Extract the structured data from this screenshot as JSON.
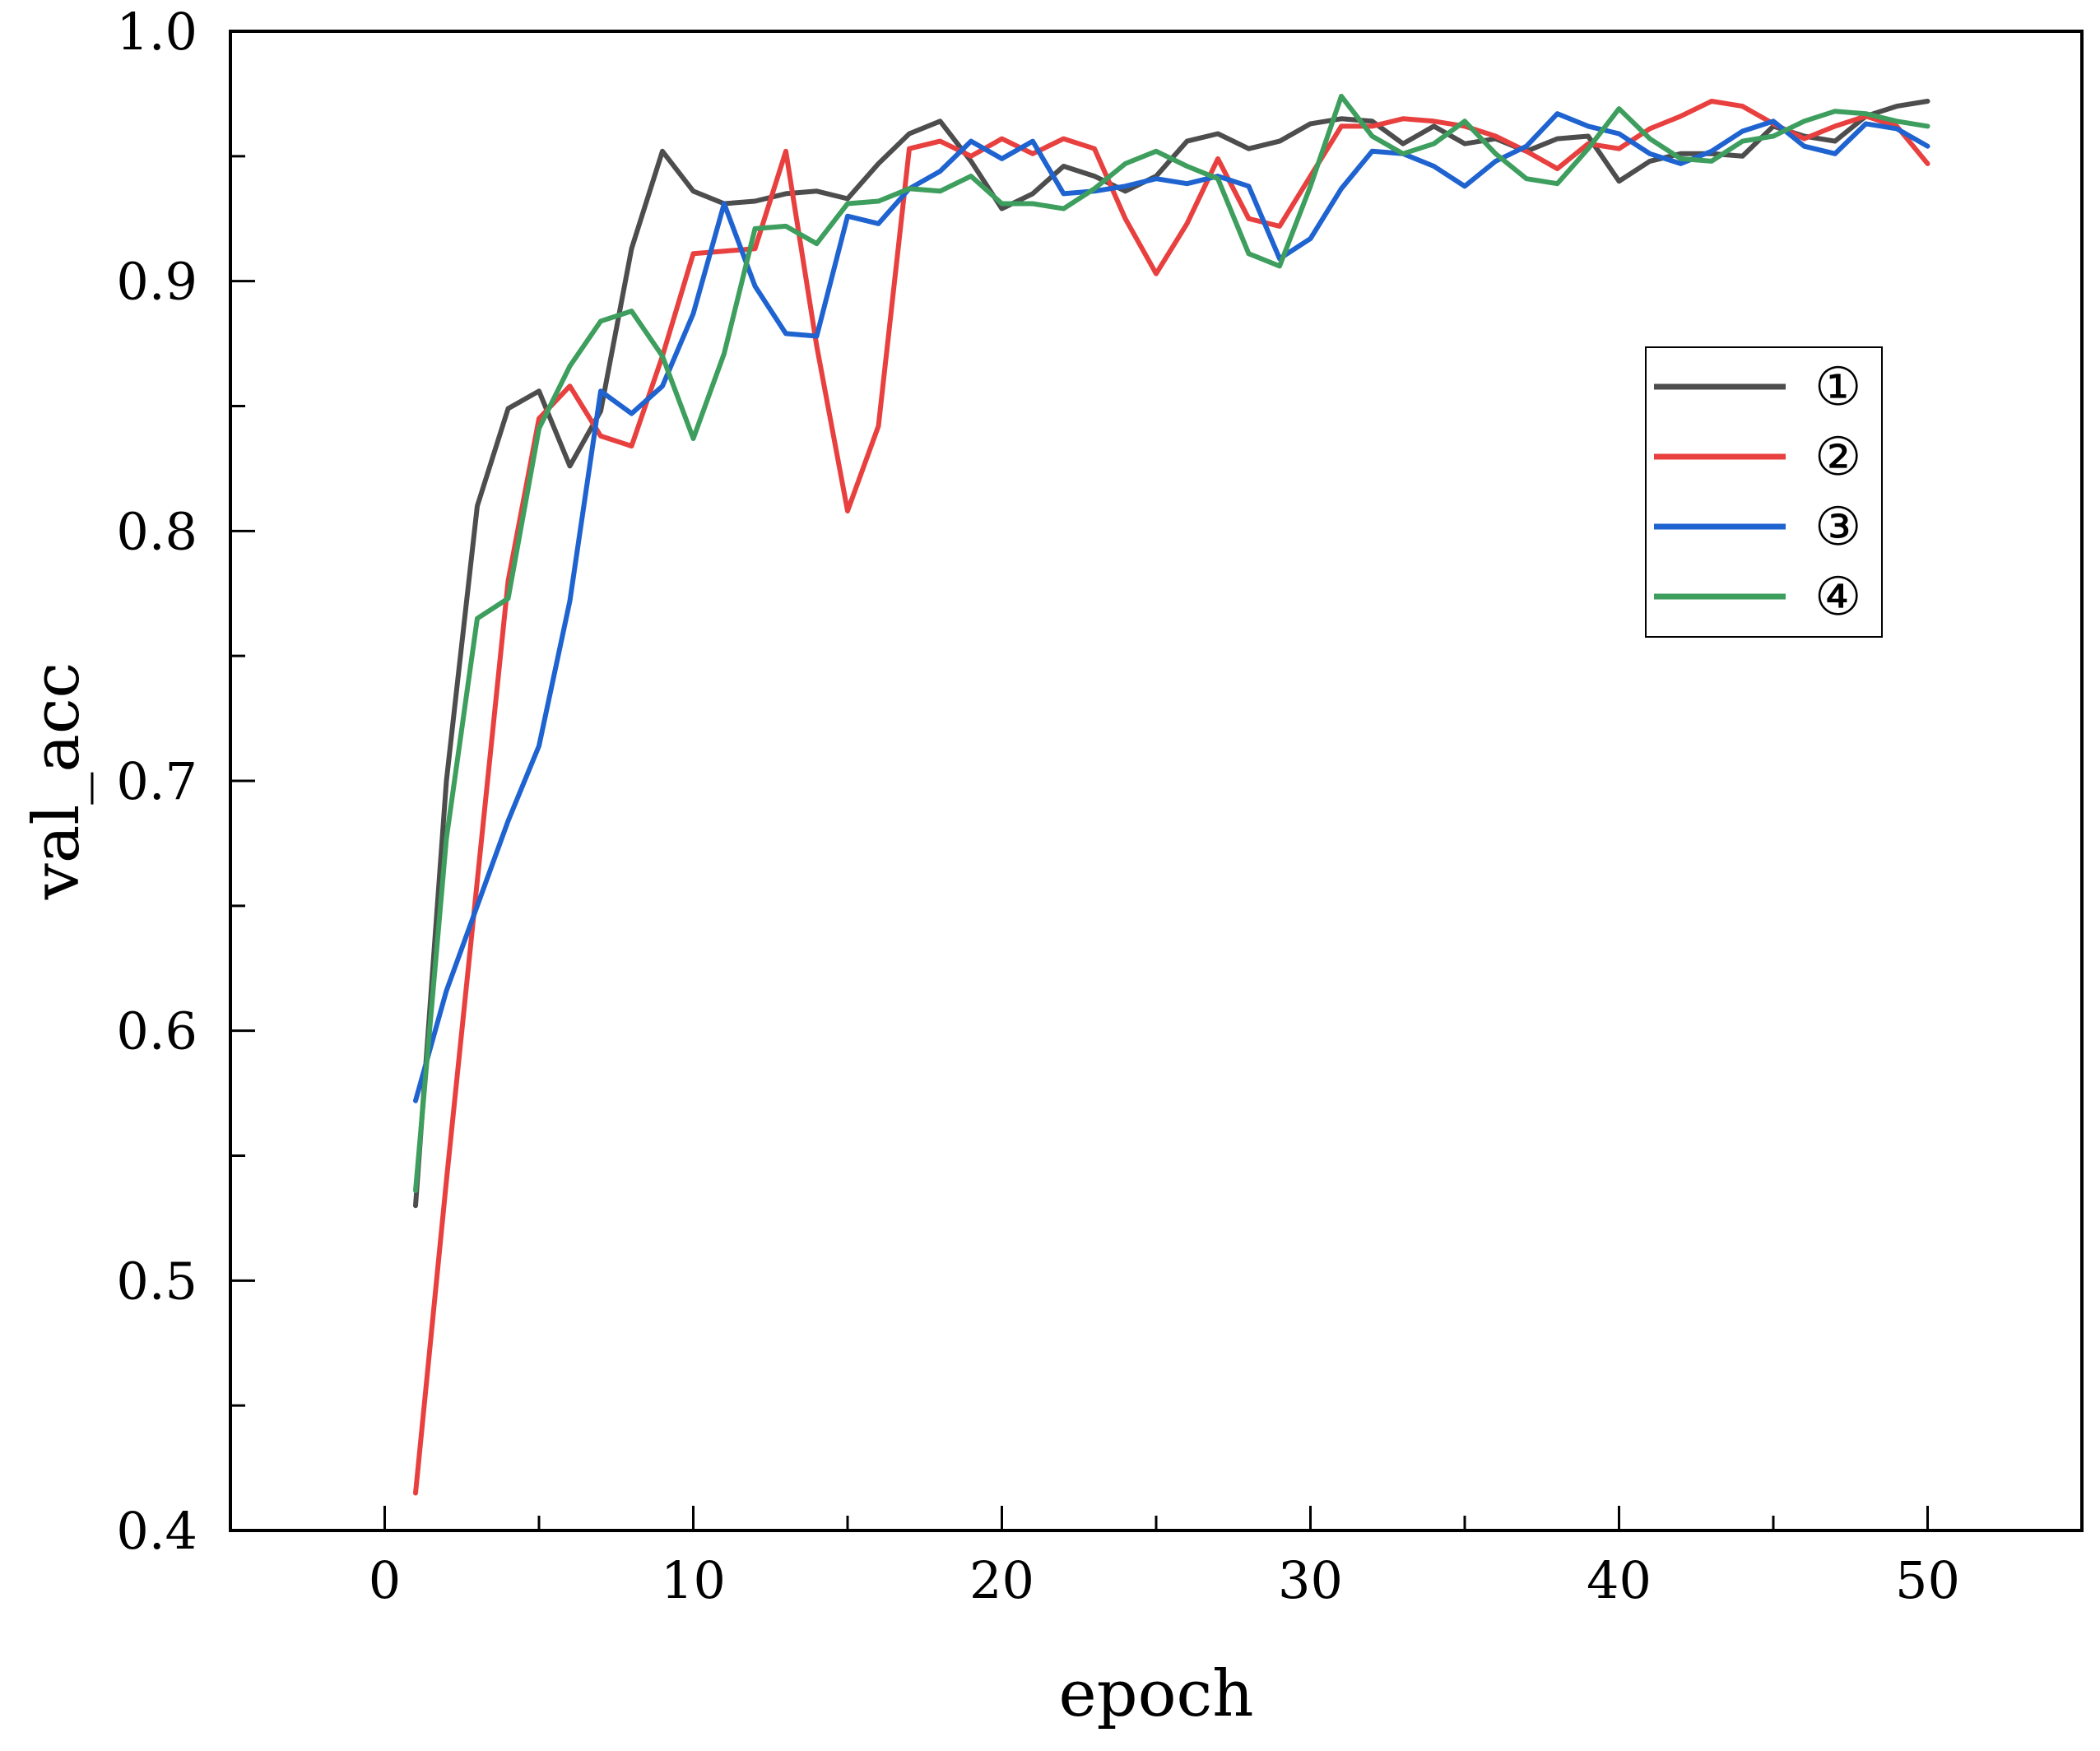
{
  "chart_data": {
    "type": "line",
    "title": "",
    "xlabel": "epoch",
    "ylabel": "val_acc",
    "xlim": [
      -5,
      55
    ],
    "ylim": [
      0.4,
      1.0
    ],
    "x_ticks": [
      0,
      10,
      20,
      30,
      40,
      50
    ],
    "x_tick_labels": [
      "0",
      "10",
      "20",
      "30",
      "40",
      "50"
    ],
    "y_ticks": [
      0.4,
      0.5,
      0.6,
      0.7,
      0.8,
      0.9,
      1.0
    ],
    "y_tick_labels": [
      "0.4",
      "0.5",
      "0.6",
      "0.7",
      "0.8",
      "0.9",
      "1.0"
    ],
    "grid": false,
    "legend_position": "center-right",
    "x": [
      1,
      2,
      3,
      4,
      5,
      6,
      7,
      8,
      9,
      10,
      11,
      12,
      13,
      14,
      15,
      16,
      17,
      18,
      19,
      20,
      21,
      22,
      23,
      24,
      25,
      26,
      27,
      28,
      29,
      30,
      31,
      32,
      33,
      34,
      35,
      36,
      37,
      38,
      39,
      40,
      41,
      42,
      43,
      44,
      45,
      46,
      47,
      48,
      49,
      50
    ],
    "series": [
      {
        "name": "①",
        "color": "#4d4d4d",
        "values": [
          0.53,
          0.7,
          0.81,
          0.849,
          0.856,
          0.826,
          0.848,
          0.913,
          0.952,
          0.936,
          0.931,
          0.932,
          0.935,
          0.936,
          0.933,
          0.947,
          0.959,
          0.964,
          0.948,
          0.929,
          0.935,
          0.946,
          0.942,
          0.936,
          0.942,
          0.956,
          0.959,
          0.953,
          0.956,
          0.963,
          0.965,
          0.964,
          0.955,
          0.962,
          0.955,
          0.957,
          0.952,
          0.957,
          0.958,
          0.94,
          0.948,
          0.951,
          0.951,
          0.95,
          0.962,
          0.958,
          0.956,
          0.966,
          0.97,
          0.972
        ]
      },
      {
        "name": "②",
        "color": "#e8403f",
        "values": [
          0.415,
          0.54,
          0.66,
          0.78,
          0.845,
          0.858,
          0.838,
          0.834,
          0.87,
          0.911,
          0.912,
          0.913,
          0.952,
          0.874,
          0.808,
          0.842,
          0.953,
          0.956,
          0.95,
          0.957,
          0.951,
          0.957,
          0.953,
          0.925,
          0.903,
          0.923,
          0.949,
          0.925,
          0.922,
          0.942,
          0.962,
          0.962,
          0.965,
          0.964,
          0.962,
          0.958,
          0.952,
          0.945,
          0.955,
          0.953,
          0.961,
          0.966,
          0.972,
          0.97,
          0.963,
          0.957,
          0.962,
          0.966,
          0.962,
          0.947
        ]
      },
      {
        "name": "③",
        "color": "#1e63d0",
        "values": [
          0.572,
          0.616,
          0.65,
          0.684,
          0.714,
          0.772,
          0.856,
          0.847,
          0.858,
          0.887,
          0.931,
          0.898,
          0.879,
          0.878,
          0.926,
          0.923,
          0.937,
          0.944,
          0.956,
          0.949,
          0.956,
          0.935,
          0.936,
          0.938,
          0.941,
          0.939,
          0.942,
          0.938,
          0.909,
          0.917,
          0.937,
          0.952,
          0.951,
          0.946,
          0.938,
          0.948,
          0.954,
          0.967,
          0.962,
          0.959,
          0.951,
          0.947,
          0.952,
          0.96,
          0.964,
          0.954,
          0.951,
          0.963,
          0.961,
          0.954
        ]
      },
      {
        "name": "④",
        "color": "#3d9e5e",
        "values": [
          0.536,
          0.677,
          0.765,
          0.773,
          0.841,
          0.866,
          0.884,
          0.888,
          0.87,
          0.837,
          0.871,
          0.921,
          0.922,
          0.915,
          0.931,
          0.932,
          0.937,
          0.936,
          0.942,
          0.931,
          0.931,
          0.929,
          0.937,
          0.947,
          0.952,
          0.946,
          0.941,
          0.911,
          0.906,
          0.938,
          0.974,
          0.958,
          0.951,
          0.955,
          0.964,
          0.951,
          0.941,
          0.939,
          0.953,
          0.969,
          0.957,
          0.949,
          0.948,
          0.956,
          0.958,
          0.964,
          0.968,
          0.967,
          0.964,
          0.962
        ]
      }
    ]
  }
}
